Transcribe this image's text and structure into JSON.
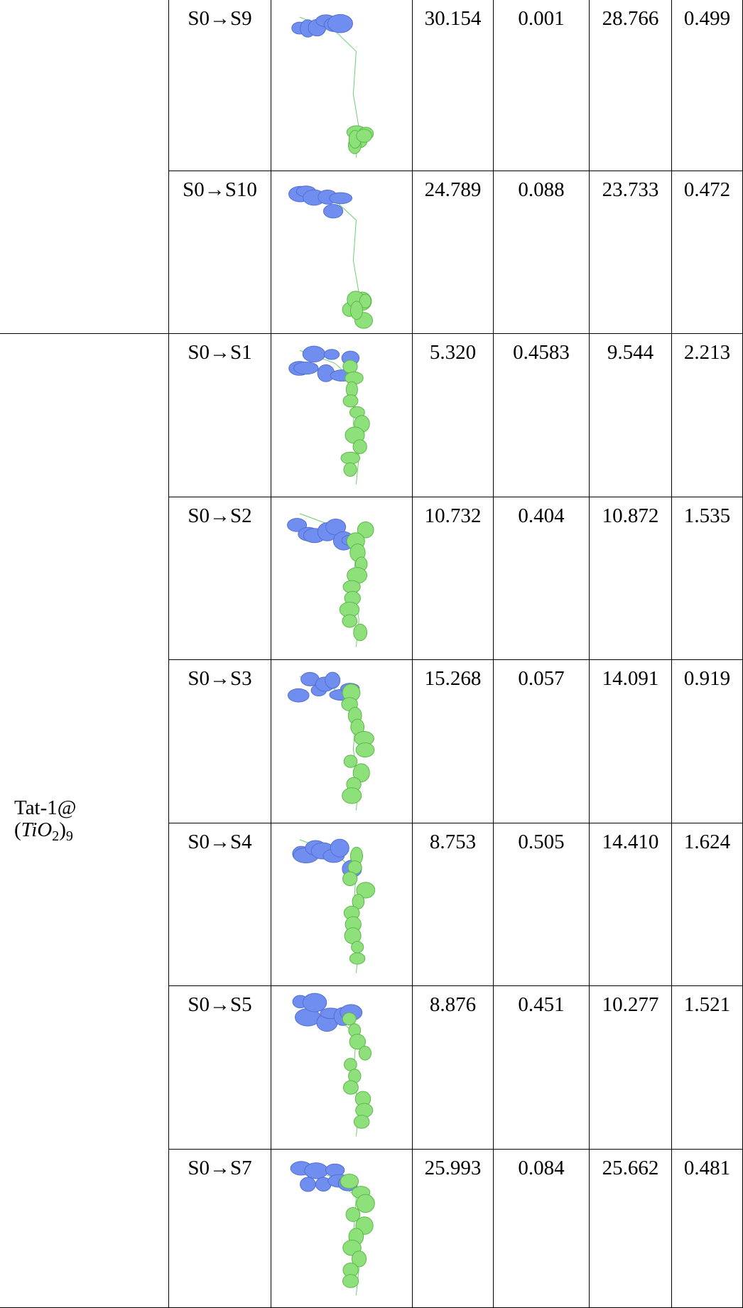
{
  "table": {
    "groups": [
      {
        "rows": [
          {
            "transition": "S0→S9",
            "values": [
              "30.154",
              "0.001",
              "28.766",
              "0.499"
            ]
          },
          {
            "transition": "S0→S10",
            "values": [
              "24.789",
              "0.088",
              "23.733",
              "0.472"
            ]
          }
        ]
      },
      {
        "label": {
          "prefix": "Tat-1@",
          "formula": [
            "(",
            "TiO",
            "2",
            ")",
            "9"
          ]
        },
        "rows": [
          {
            "transition": "S0→S1",
            "values": [
              "5.320",
              "0.4583",
              "9.544",
              "2.213"
            ]
          },
          {
            "transition": "S0→S2",
            "values": [
              "10.732",
              "0.404",
              "10.872",
              "1.535"
            ]
          },
          {
            "transition": "S0→S3",
            "values": [
              "15.268",
              "0.057",
              "14.091",
              "0.919"
            ]
          },
          {
            "transition": "S0→S4",
            "values": [
              "8.753",
              "0.505",
              "14.410",
              "1.624"
            ]
          },
          {
            "transition": "S0→S5",
            "values": [
              "8.876",
              "0.451",
              "10.277",
              "1.521"
            ]
          },
          {
            "transition": "S0→S7",
            "values": [
              "25.993",
              "0.084",
              "25.662",
              "0.481"
            ]
          }
        ]
      }
    ]
  }
}
